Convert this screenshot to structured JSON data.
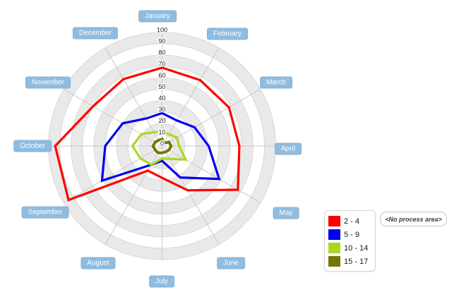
{
  "chart_data": {
    "type": "radar",
    "title": "",
    "categories": [
      "January",
      "February",
      "March",
      "April",
      "May",
      "June",
      "July",
      "August",
      "September",
      "October",
      "November",
      "December"
    ],
    "series": [
      {
        "name": "2 - 4",
        "color": "#ff0000",
        "values": [
          69,
          67,
          68,
          68,
          77,
          45,
          28,
          25,
          95,
          94,
          70,
          68
        ]
      },
      {
        "name": "5 - 9",
        "color": "#0000ee",
        "values": [
          29,
          26,
          33,
          41,
          58,
          32,
          13,
          19,
          61,
          50,
          40,
          28
        ]
      },
      {
        "name": "10 - 14",
        "color": "#aad822",
        "values": [
          13,
          12,
          15,
          15,
          24,
          13,
          11,
          19,
          22,
          26,
          21,
          14
        ]
      },
      {
        "name": "15 - 17",
        "color": "#76760a",
        "values": [
          6,
          3,
          7,
          8,
          7,
          6,
          6,
          7,
          7,
          8,
          7,
          6
        ]
      }
    ],
    "axis": {
      "min": 0,
      "max": 100,
      "step": 10,
      "tick_labels": [
        "0",
        "10",
        "20",
        "30",
        "40",
        "50",
        "60",
        "70",
        "80",
        "90",
        "100"
      ]
    },
    "grid": "alternating circular bands",
    "legend_position": "right"
  },
  "misc": {
    "no_process_area": "<No process area>"
  }
}
